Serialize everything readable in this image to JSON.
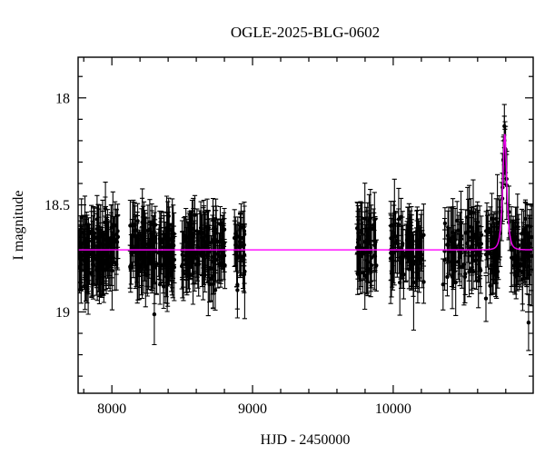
{
  "chart_data": {
    "type": "scatter",
    "title": "OGLE-2025-BLG-0602",
    "xlabel": "HJD - 2450000",
    "ylabel": "I magnitude",
    "xlim": [
      7760,
      10995
    ],
    "ylim_mag": [
      17.81,
      19.38
    ],
    "y_axis_inverted": true,
    "grid": false,
    "x_major_ticks": [
      {
        "value": 8000,
        "label": "8000"
      },
      {
        "value": 9000,
        "label": "9000"
      },
      {
        "value": 10000,
        "label": "10000"
      }
    ],
    "x_minor_step": 200,
    "y_major_ticks": [
      {
        "value": 18,
        "label": "18"
      },
      {
        "value": 18.5,
        "label": "18.5"
      },
      {
        "value": 19,
        "label": "19"
      }
    ],
    "y_minor_step": 0.1,
    "colors": {
      "points": "#000000",
      "error_bars": "#000000",
      "model_curve": "#ff00ff",
      "frame": "#000000",
      "background": "#ffffff"
    },
    "model": {
      "type": "paczynski",
      "baseline_mag": 18.71,
      "t0": 10793,
      "u0": 0.72,
      "tE": 20,
      "peak_mag": 18.17
    },
    "seasons": [
      {
        "t_start": 7762,
        "t_end": 8045,
        "n": 135
      },
      {
        "t_start": 8128,
        "t_end": 8444,
        "n": 125
      },
      {
        "t_start": 8496,
        "t_end": 8806,
        "n": 125
      },
      {
        "t_start": 8871,
        "t_end": 8948,
        "n": 30
      },
      {
        "t_start": 9742,
        "t_end": 9884,
        "n": 55
      },
      {
        "t_start": 9981,
        "t_end": 10220,
        "n": 80
      },
      {
        "t_start": 10349,
        "t_end": 10627,
        "n": 80
      },
      {
        "t_start": 10659,
        "t_end": 10988,
        "n": 115,
        "follow_model": true
      }
    ],
    "outliers": [
      {
        "t": 10962,
        "mag": 19.05,
        "err": 0.13
      }
    ],
    "scatter_sigma": 0.072,
    "err_min": 0.07,
    "err_max": 0.16,
    "seed": 20250602
  }
}
